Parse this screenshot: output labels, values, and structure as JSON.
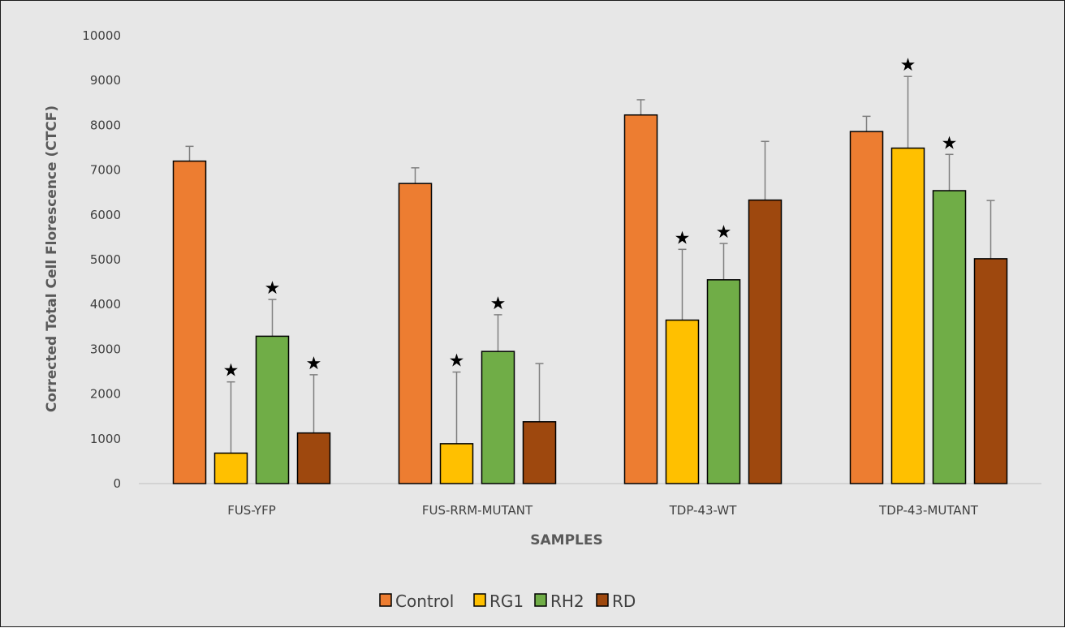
{
  "chart_data": {
    "type": "bar",
    "title": "",
    "xlabel": "SAMPLES",
    "ylabel": "Corrected Total Cell Florescence (CTCF)",
    "ylim": [
      0,
      10000
    ],
    "yticks": [
      0,
      1000,
      2000,
      3000,
      4000,
      5000,
      6000,
      7000,
      8000,
      9000,
      10000
    ],
    "categories": [
      "FUS-YFP",
      "FUS-RRM-MUTANT",
      "TDP-43-WT",
      "TDP-43-MUTANT"
    ],
    "series": [
      {
        "name": "Control",
        "color": "#ed7d31",
        "values": [
          7200,
          6700,
          8230,
          7860
        ],
        "errors": [
          330,
          350,
          340,
          340
        ],
        "significant": [
          false,
          false,
          false,
          false
        ]
      },
      {
        "name": "RG1",
        "color": "#ffc000",
        "values": [
          680,
          890,
          3650,
          7490
        ],
        "errors": [
          1590,
          1600,
          1580,
          1600
        ],
        "significant": [
          true,
          true,
          true,
          true
        ]
      },
      {
        "name": "RH2",
        "color": "#70ad47",
        "values": [
          3290,
          2950,
          4550,
          6540
        ],
        "errors": [
          820,
          820,
          810,
          810
        ],
        "significant": [
          true,
          true,
          true,
          true
        ]
      },
      {
        "name": "RD",
        "color": "#9e480e",
        "values": [
          1130,
          1380,
          6330,
          5020
        ],
        "errors": [
          1300,
          1300,
          1310,
          1300
        ],
        "significant": [
          true,
          false,
          false,
          false
        ]
      }
    ],
    "significance_marker": "★",
    "grid": false,
    "legend_position": "bottom"
  }
}
